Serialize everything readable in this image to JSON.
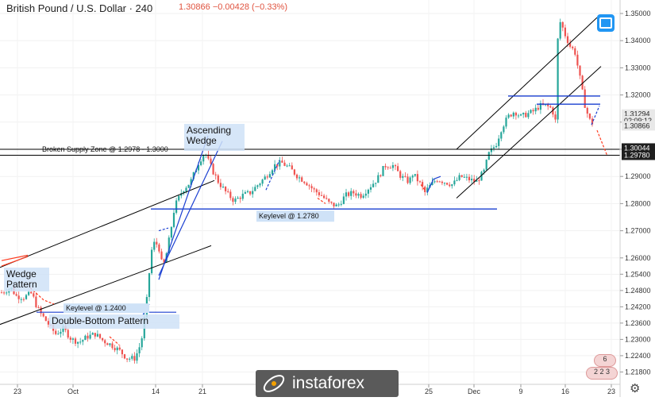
{
  "header": {
    "instrument": "British Pound / U.S. Dollar · 240",
    "quote": "1.30866  −0.00428 (−0.33%)"
  },
  "watermark": {
    "text": "instaforex"
  },
  "colors": {
    "up": "#26a69a",
    "down": "#ef5350",
    "blue_line": "#1a3fd1",
    "black_line": "#000000",
    "red_arrow": "#ff3b1f"
  },
  "icons": [
    "fullscreen-icon",
    "settings-gear-icon",
    "instaforex-logo-icon",
    "flag-icon"
  ],
  "events": {
    "top": {
      "count": "6"
    },
    "bottom": {
      "counts": "2  2  3"
    }
  },
  "chart_data": {
    "type": "candlestick",
    "title": "British Pound / U.S. Dollar · 240",
    "ylim": [
      1.2155,
      1.3535
    ],
    "y_ticks": [
      "1.35000",
      "1.34000",
      "1.33000",
      "1.32000",
      "1.31000",
      "1.30000",
      "1.29000",
      "1.28000",
      "1.27000",
      "1.26000",
      "1.25400",
      "1.24800",
      "1.24200",
      "1.23600",
      "1.23000",
      "1.22400",
      "1.21800"
    ],
    "x_ticks": [
      "23",
      "Oct",
      "14",
      "21",
      "25",
      "Dec",
      "9",
      "16",
      "23"
    ],
    "price_labels": [
      {
        "label": "1.31294",
        "value": 1.31294,
        "style": "grey"
      },
      {
        "label": "02:09:12",
        "value": 1.31052,
        "style": "grey"
      },
      {
        "label": "1.30866",
        "value": 1.30866,
        "style": "grey"
      },
      {
        "label": "1.30044",
        "value": 1.30044,
        "style": "dark"
      },
      {
        "label": "1.29780",
        "value": 1.2978,
        "style": "dark"
      }
    ],
    "series": [
      {
        "key": [
          [
            0,
            1.247
          ],
          [
            14,
            1.249
          ],
          [
            20,
            1.246
          ],
          [
            30,
            1.2455
          ],
          [
            40,
            1.247
          ],
          [
            45,
            1.243
          ],
          [
            50,
            1.24
          ],
          [
            60,
            1.236
          ],
          [
            70,
            1.232
          ],
          [
            80,
            1.234
          ],
          [
            90,
            1.23
          ],
          [
            100,
            1.229
          ],
          [
            110,
            1.231
          ],
          [
            120,
            1.232
          ],
          [
            130,
            1.2295
          ],
          [
            140,
            1.228
          ],
          [
            150,
            1.226
          ],
          [
            160,
            1.223
          ],
          [
            170,
            1.223
          ],
          [
            178,
            1.229
          ],
          [
            182,
            1.238
          ],
          [
            186,
            1.247
          ],
          [
            190,
            1.262
          ],
          [
            195,
            1.266
          ],
          [
            200,
            1.264
          ],
          [
            205,
            1.256
          ],
          [
            210,
            1.262
          ],
          [
            215,
            1.27
          ],
          [
            220,
            1.279
          ],
          [
            225,
            1.282
          ],
          [
            230,
            1.285
          ],
          [
            240,
            1.288
          ],
          [
            250,
            1.295
          ],
          [
            258,
            1.299
          ],
          [
            262,
            1.296
          ],
          [
            268,
            1.292
          ],
          [
            275,
            1.288
          ],
          [
            285,
            1.284
          ],
          [
            295,
            1.281
          ],
          [
            305,
            1.283
          ],
          [
            315,
            1.284
          ],
          [
            325,
            1.287
          ],
          [
            335,
            1.29
          ],
          [
            345,
            1.294
          ],
          [
            355,
            1.295
          ],
          [
            365,
            1.293
          ],
          [
            375,
            1.29
          ],
          [
            385,
            1.288
          ],
          [
            395,
            1.285
          ],
          [
            405,
            1.283
          ],
          [
            415,
            1.28
          ],
          [
            425,
            1.279
          ],
          [
            435,
            1.283
          ],
          [
            445,
            1.284
          ],
          [
            455,
            1.283
          ],
          [
            465,
            1.286
          ],
          [
            475,
            1.289
          ],
          [
            485,
            1.294
          ],
          [
            495,
            1.294
          ],
          [
            505,
            1.29
          ],
          [
            515,
            1.288
          ],
          [
            520,
            1.291
          ],
          [
            530,
            1.287
          ],
          [
            535,
            1.284
          ],
          [
            540,
            1.286
          ],
          [
            550,
            1.289
          ],
          [
            560,
            1.288
          ],
          [
            570,
            1.287
          ],
          [
            580,
            1.29
          ],
          [
            590,
            1.289
          ],
          [
            600,
            1.288
          ],
          [
            610,
            1.292
          ],
          [
            615,
            1.298
          ],
          [
            625,
            1.302
          ],
          [
            632,
            1.308
          ],
          [
            640,
            1.312
          ],
          [
            648,
            1.314
          ],
          [
            656,
            1.312
          ],
          [
            664,
            1.313
          ],
          [
            672,
            1.314
          ],
          [
            680,
            1.316
          ],
          [
            688,
            1.316
          ],
          [
            695,
            1.315
          ],
          [
            700,
            1.31
          ],
          [
            703,
            1.345
          ],
          [
            706,
            1.347
          ],
          [
            712,
            1.342
          ],
          [
            718,
            1.338
          ],
          [
            724,
            1.336
          ],
          [
            730,
            1.327
          ],
          [
            736,
            1.317
          ],
          [
            742,
            1.311
          ],
          [
            748,
            1.309
          ]
        ]
      }
    ],
    "lines": [
      {
        "label": "Broken Supply Zone @ 1.2978 - 1.3000",
        "y": [
          1.2978,
          1.3
        ]
      },
      {
        "label": "Keylevel @ 1.2780",
        "y": 1.278
      },
      {
        "label": "Keylevel @ 1.2400",
        "y": 1.24
      }
    ],
    "annotations": [
      "Wedge Pattern",
      "Double-Bottom Pattern",
      "Ascending Wedge",
      "Broken Supply Zone @ 1.2978 - 1.3000",
      "Keylevel @ 1.2780",
      "Keylevel @ 1.2400"
    ]
  }
}
